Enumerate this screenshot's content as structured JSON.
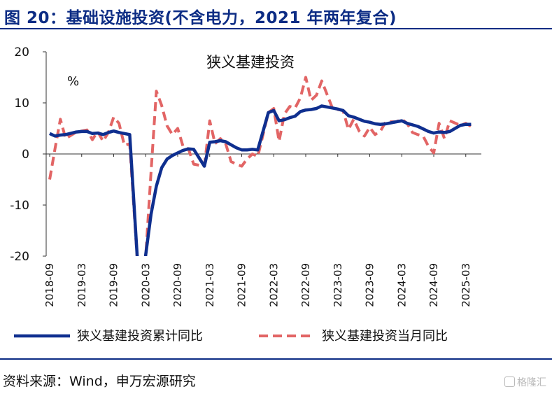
{
  "figure": {
    "title": "图 20：基础设施投资(不含电力，2021 年两年复合)",
    "source": "资料来源：Wind，申万宏源研究",
    "watermark": "格隆汇"
  },
  "colors": {
    "accent": "#0c2c84",
    "cumulative": "#0f2f8f",
    "monthly": "#e26565"
  },
  "chart_data": {
    "type": "line",
    "title": "狭义基建投资",
    "unit": "%",
    "ylim": [
      -20,
      20
    ],
    "yticks": [
      20,
      10,
      0,
      -10,
      -20
    ],
    "xticks": [
      "2018-09",
      "2019-03",
      "2019-09",
      "2020-03",
      "2020-09",
      "2021-03",
      "2021-09",
      "2022-03",
      "2022-09",
      "2023-03",
      "2023-09",
      "2024-03",
      "2024-09",
      "2025-03"
    ],
    "x_range": [
      "2018-09",
      "2025-05"
    ],
    "grid": false,
    "legend": "bottom",
    "series": [
      {
        "name": "狭义基建投资累计同比",
        "style": "solid",
        "points": [
          [
            "2018-09",
            4.0
          ],
          [
            "2018-10",
            3.5
          ],
          [
            "2018-11",
            3.7
          ],
          [
            "2018-12",
            3.8
          ],
          [
            "2019-02",
            4.3
          ],
          [
            "2019-03",
            4.4
          ],
          [
            "2019-04",
            4.4
          ],
          [
            "2019-05",
            4.0
          ],
          [
            "2019-06",
            4.1
          ],
          [
            "2019-07",
            3.8
          ],
          [
            "2019-08",
            4.2
          ],
          [
            "2019-09",
            4.5
          ],
          [
            "2019-10",
            4.2
          ],
          [
            "2019-11",
            4.0
          ],
          [
            "2019-12",
            3.8
          ],
          [
            "2020-02",
            -30.0
          ],
          [
            "2020-03",
            -19.7
          ],
          [
            "2020-04",
            -11.8
          ],
          [
            "2020-05",
            -6.3
          ],
          [
            "2020-06",
            -2.7
          ],
          [
            "2020-07",
            -1.0
          ],
          [
            "2020-08",
            -0.3
          ],
          [
            "2020-09",
            0.2
          ],
          [
            "2020-10",
            0.7
          ],
          [
            "2020-11",
            1.0
          ],
          [
            "2020-12",
            0.9
          ],
          [
            "2021-02",
            -2.4
          ],
          [
            "2021-03",
            2.3
          ],
          [
            "2021-04",
            2.4
          ],
          [
            "2021-05",
            2.6
          ],
          [
            "2021-06",
            2.4
          ],
          [
            "2021-07",
            1.8
          ],
          [
            "2021-08",
            1.2
          ],
          [
            "2021-09",
            0.8
          ],
          [
            "2021-10",
            0.8
          ],
          [
            "2021-11",
            0.9
          ],
          [
            "2021-12",
            0.8
          ],
          [
            "2022-02",
            8.1
          ],
          [
            "2022-03",
            8.5
          ],
          [
            "2022-04",
            6.5
          ],
          [
            "2022-05",
            6.7
          ],
          [
            "2022-06",
            7.1
          ],
          [
            "2022-07",
            7.4
          ],
          [
            "2022-08",
            8.3
          ],
          [
            "2022-09",
            8.6
          ],
          [
            "2022-10",
            8.7
          ],
          [
            "2022-11",
            8.9
          ],
          [
            "2022-12",
            9.4
          ],
          [
            "2023-02",
            9.0
          ],
          [
            "2023-03",
            8.8
          ],
          [
            "2023-04",
            8.5
          ],
          [
            "2023-05",
            7.5
          ],
          [
            "2023-06",
            7.2
          ],
          [
            "2023-07",
            6.8
          ],
          [
            "2023-08",
            6.4
          ],
          [
            "2023-09",
            6.2
          ],
          [
            "2023-10",
            5.9
          ],
          [
            "2023-11",
            5.8
          ],
          [
            "2023-12",
            5.9
          ],
          [
            "2024-02",
            6.3
          ],
          [
            "2024-03",
            6.5
          ],
          [
            "2024-04",
            6.0
          ],
          [
            "2024-05",
            5.7
          ],
          [
            "2024-06",
            5.4
          ],
          [
            "2024-07",
            4.9
          ],
          [
            "2024-08",
            4.4
          ],
          [
            "2024-09",
            4.1
          ],
          [
            "2024-10",
            4.3
          ],
          [
            "2024-11",
            4.2
          ],
          [
            "2024-12",
            4.4
          ],
          [
            "2025-02",
            5.6
          ],
          [
            "2025-03",
            5.8
          ],
          [
            "2025-04",
            5.8
          ]
        ]
      },
      {
        "name": "狭义基建投资当月同比",
        "style": "dashed",
        "points": [
          [
            "2018-09",
            -5.0
          ],
          [
            "2018-10",
            1.0
          ],
          [
            "2018-11",
            6.8
          ],
          [
            "2018-12",
            3.0
          ],
          [
            "2019-02",
            4.3
          ],
          [
            "2019-03",
            4.5
          ],
          [
            "2019-04",
            4.7
          ],
          [
            "2019-05",
            2.8
          ],
          [
            "2019-06",
            4.4
          ],
          [
            "2019-07",
            2.5
          ],
          [
            "2019-08",
            4.2
          ],
          [
            "2019-09",
            7.2
          ],
          [
            "2019-10",
            6.0
          ],
          [
            "2019-11",
            1.7
          ],
          [
            "2019-12",
            2.0
          ],
          [
            "2020-02",
            -30.0
          ],
          [
            "2020-03",
            -20.0
          ],
          [
            "2020-04",
            -3.5
          ],
          [
            "2020-05",
            12.3
          ],
          [
            "2020-06",
            9.5
          ],
          [
            "2020-07",
            5.5
          ],
          [
            "2020-08",
            3.8
          ],
          [
            "2020-09",
            5.0
          ],
          [
            "2020-10",
            1.5
          ],
          [
            "2020-11",
            1.0
          ],
          [
            "2020-12",
            -2.0
          ],
          [
            "2021-02",
            -2.4
          ],
          [
            "2021-03",
            6.5
          ],
          [
            "2021-04",
            2.0
          ],
          [
            "2021-05",
            3.0
          ],
          [
            "2021-06",
            2.0
          ],
          [
            "2021-07",
            -1.5
          ],
          [
            "2021-08",
            -2.0
          ],
          [
            "2021-09",
            -2.4
          ],
          [
            "2021-10",
            -1.0
          ],
          [
            "2021-11",
            0.0
          ],
          [
            "2021-12",
            -0.5
          ],
          [
            "2022-02",
            8.1
          ],
          [
            "2022-03",
            8.9
          ],
          [
            "2022-04",
            2.5
          ],
          [
            "2022-05",
            7.8
          ],
          [
            "2022-06",
            9.3
          ],
          [
            "2022-07",
            9.0
          ],
          [
            "2022-08",
            11.0
          ],
          [
            "2022-09",
            15.0
          ],
          [
            "2022-10",
            10.5
          ],
          [
            "2022-11",
            11.5
          ],
          [
            "2022-12",
            14.3
          ],
          [
            "2023-02",
            9.0
          ],
          [
            "2023-03",
            8.7
          ],
          [
            "2023-04",
            8.5
          ],
          [
            "2023-05",
            4.8
          ],
          [
            "2023-06",
            6.8
          ],
          [
            "2023-07",
            4.5
          ],
          [
            "2023-08",
            3.5
          ],
          [
            "2023-09",
            5.2
          ],
          [
            "2023-10",
            3.8
          ],
          [
            "2023-11",
            4.5
          ],
          [
            "2023-12",
            6.3
          ],
          [
            "2024-02",
            6.3
          ],
          [
            "2024-03",
            6.8
          ],
          [
            "2024-04",
            6.0
          ],
          [
            "2024-05",
            4.2
          ],
          [
            "2024-06",
            3.8
          ],
          [
            "2024-07",
            3.5
          ],
          [
            "2024-08",
            1.5
          ],
          [
            "2024-09",
            0.2
          ],
          [
            "2024-10",
            6.0
          ],
          [
            "2024-11",
            3.0
          ],
          [
            "2024-12",
            6.5
          ],
          [
            "2025-02",
            5.6
          ],
          [
            "2025-03",
            6.0
          ],
          [
            "2025-04",
            5.4
          ]
        ]
      }
    ]
  }
}
